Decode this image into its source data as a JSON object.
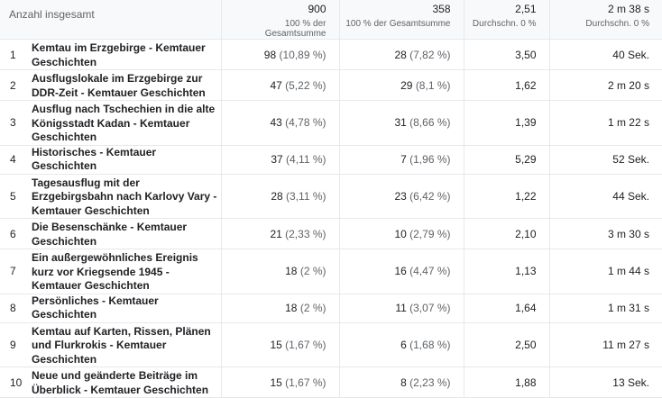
{
  "header": {
    "label": "Anzahl insgesamt",
    "metrics": [
      {
        "total": "900",
        "sub": "100 % der Gesamtsumme"
      },
      {
        "total": "358",
        "sub": "100 % der Gesamtsumme"
      },
      {
        "total": "2,51",
        "sub": "Durchschn. 0 %"
      },
      {
        "total": "2 m 38 s",
        "sub": "Durchschn. 0 %"
      }
    ]
  },
  "rows": [
    {
      "idx": "1",
      "title": "Kemtau im Erzgebirge - Kemtauer Geschichten",
      "v1": "98",
      "p1": "(10,89 %)",
      "v2": "28",
      "p2": "(7,82 %)",
      "v3": "3,50",
      "v4": "40 Sek."
    },
    {
      "idx": "2",
      "title": "Ausflugslokale im Erzgebirge zur DDR-Zeit - Kemtauer Geschichten",
      "v1": "47",
      "p1": "(5,22 %)",
      "v2": "29",
      "p2": "(8,1 %)",
      "v3": "1,62",
      "v4": "2 m 20 s"
    },
    {
      "idx": "3",
      "title": "Ausflug nach Tschechien in die alte Königsstadt Kadan - Kemtauer Geschichten",
      "v1": "43",
      "p1": "(4,78 %)",
      "v2": "31",
      "p2": "(8,66 %)",
      "v3": "1,39",
      "v4": "1 m 22 s"
    },
    {
      "idx": "4",
      "title": "Historisches - Kemtauer Geschichten",
      "v1": "37",
      "p1": "(4,11 %)",
      "v2": "7",
      "p2": "(1,96 %)",
      "v3": "5,29",
      "v4": "52 Sek."
    },
    {
      "idx": "5",
      "title": "Tagesausflug mit der Erzgebirgsbahn nach Karlovy Vary - Kemtauer Geschichten",
      "v1": "28",
      "p1": "(3,11 %)",
      "v2": "23",
      "p2": "(6,42 %)",
      "v3": "1,22",
      "v4": "44 Sek."
    },
    {
      "idx": "6",
      "title": "Die Besenschänke - Kemtauer Geschichten",
      "v1": "21",
      "p1": "(2,33 %)",
      "v2": "10",
      "p2": "(2,79 %)",
      "v3": "2,10",
      "v4": "3 m 30 s"
    },
    {
      "idx": "7",
      "title": "Ein außergewöhnliches Ereignis kurz vor Kriegsende 1945 - Kemtauer Geschichten",
      "v1": "18",
      "p1": "(2 %)",
      "v2": "16",
      "p2": "(4,47 %)",
      "v3": "1,13",
      "v4": "1 m 44 s"
    },
    {
      "idx": "8",
      "title": "Persönliches - Kemtauer Geschichten",
      "v1": "18",
      "p1": "(2 %)",
      "v2": "11",
      "p2": "(3,07 %)",
      "v3": "1,64",
      "v4": "1 m 31 s"
    },
    {
      "idx": "9",
      "title": "Kemtau auf Karten, Rissen, Plänen und Flurkrokis - Kemtauer Geschichten",
      "v1": "15",
      "p1": "(1,67 %)",
      "v2": "6",
      "p2": "(1,68 %)",
      "v3": "2,50",
      "v4": "11 m 27 s"
    },
    {
      "idx": "10",
      "title": "Neue und geänderte Beiträge im Überblick - Kemtauer Geschichten",
      "v1": "15",
      "p1": "(1,67 %)",
      "v2": "8",
      "p2": "(2,23 %)",
      "v3": "1,88",
      "v4": "13 Sek."
    }
  ]
}
